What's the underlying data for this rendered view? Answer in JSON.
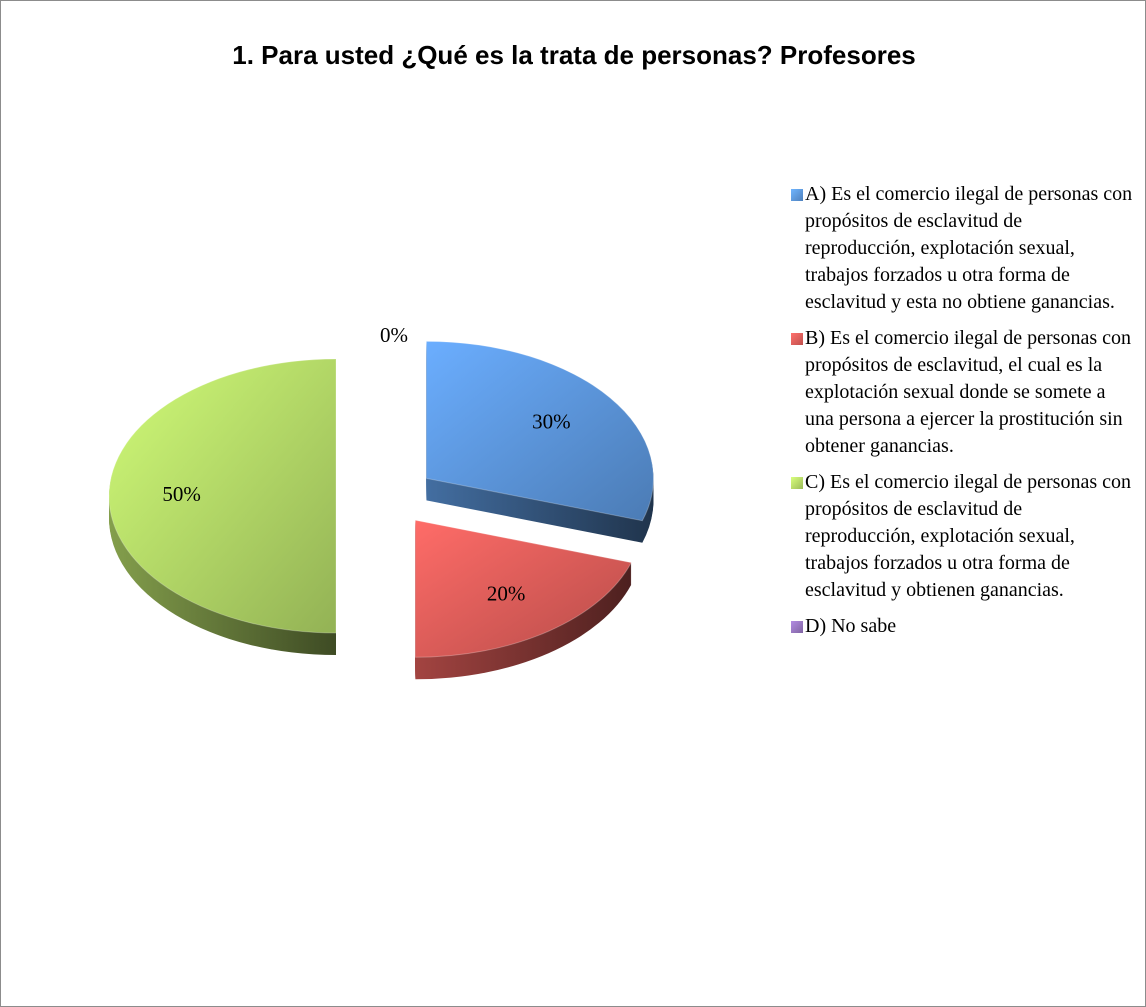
{
  "chart_data": {
    "type": "pie",
    "title": "1. Para usted ¿Qué es la trata de personas? Profesores",
    "categories": [
      "A) Es el comercio ilegal de personas con propósitos de esclavitud de reproducción, explotación sexual, trabajos forzados u otra forma de esclavitud y esta no obtiene ganancias.",
      "B) Es el comercio ilegal de personas con propósitos de esclavitud, el cual es la explotación sexual donde se somete a una persona a ejercer la prostitución sin obtener ganancias.",
      "C) Es el comercio ilegal de personas con propósitos de esclavitud de reproducción, explotación sexual, trabajos forzados u otra forma de esclavitud y obtienen ganancias.",
      "D) No sabe"
    ],
    "values": [
      30,
      20,
      50,
      0
    ],
    "value_labels": [
      "30%",
      "20%",
      "50%",
      "0%"
    ],
    "colors": [
      "#4f81bd",
      "#c0504d",
      "#9bbb59",
      "#8064a2"
    ],
    "legend": "right"
  }
}
